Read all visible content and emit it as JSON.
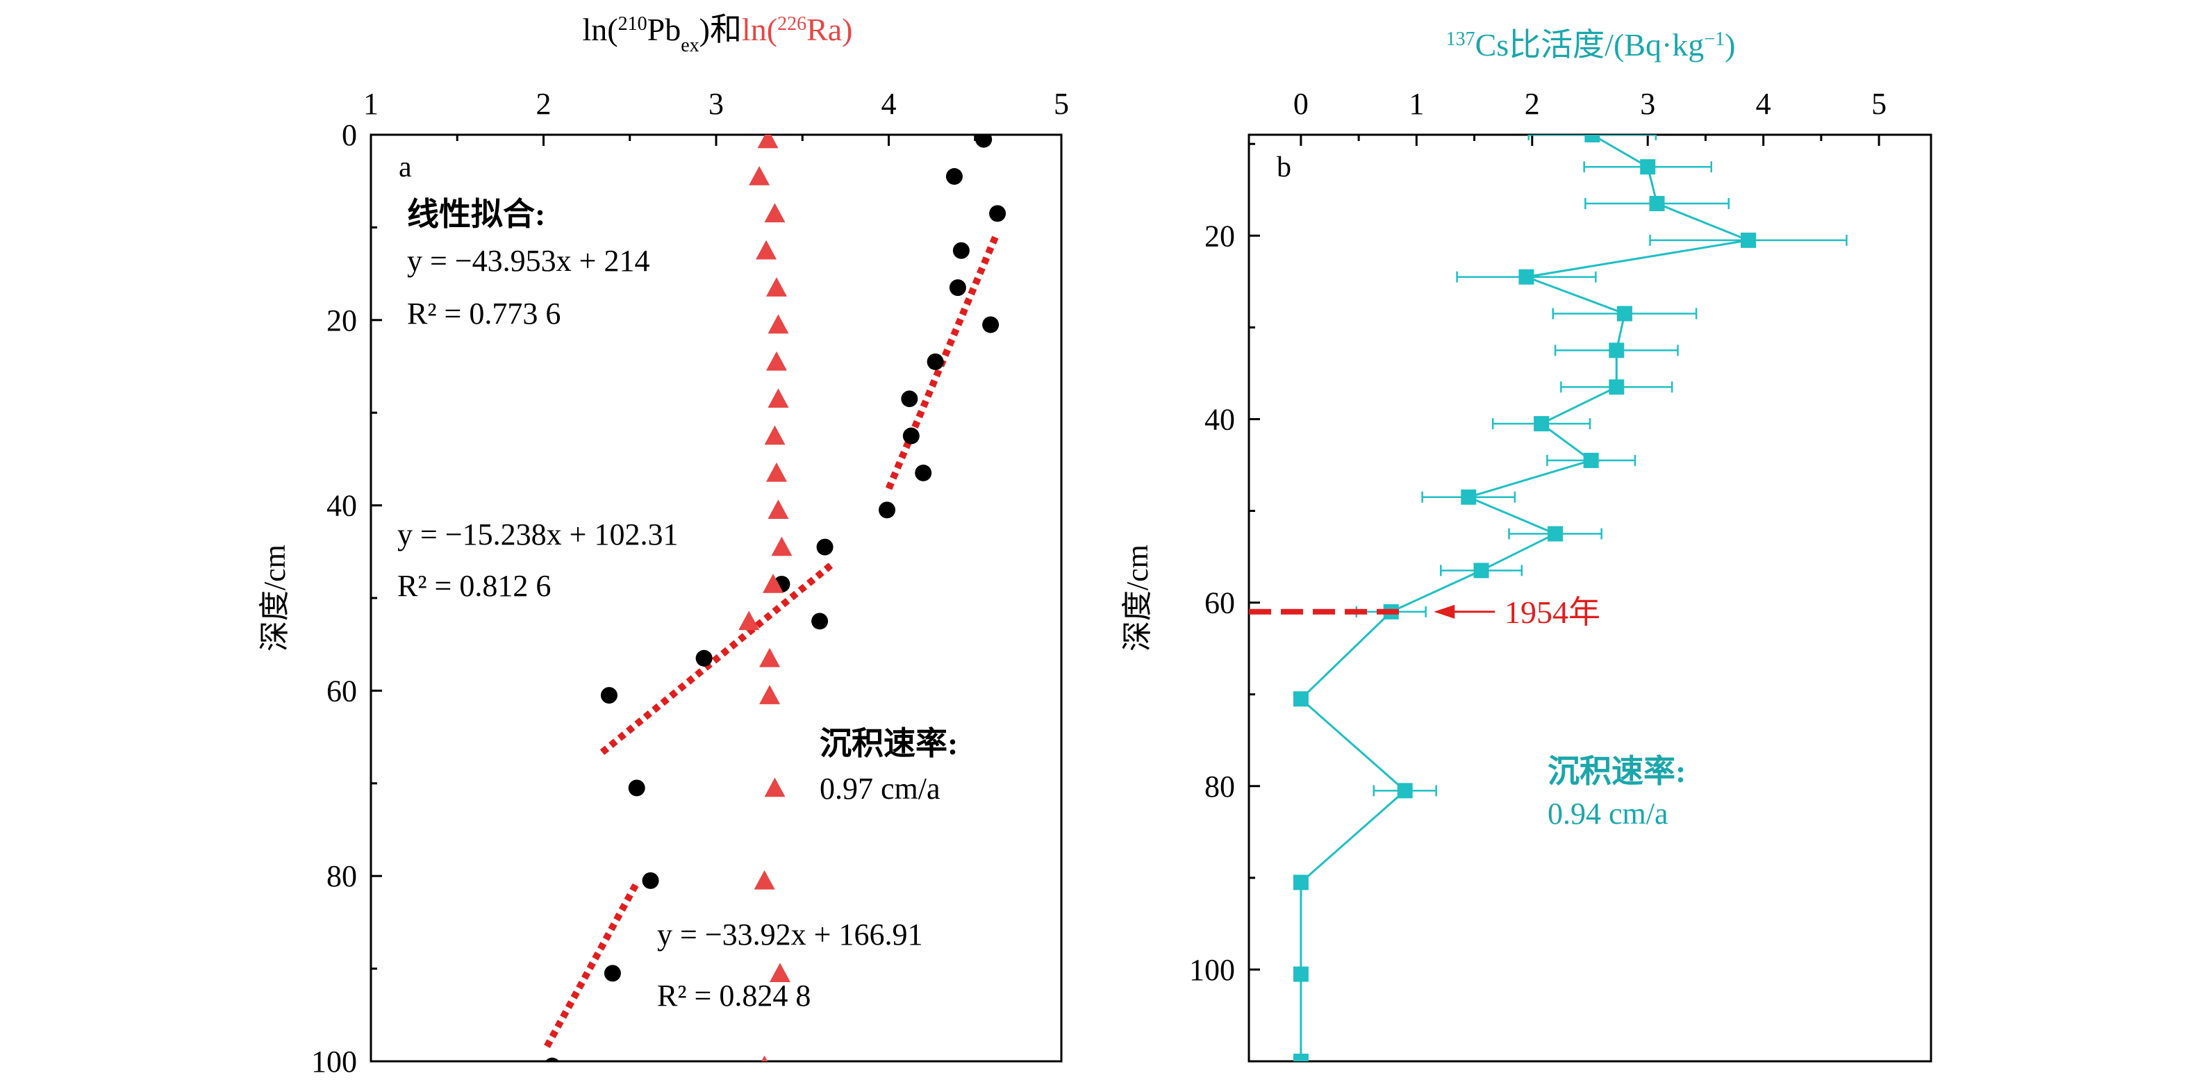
{
  "chart_data": [
    {
      "panel_label": "a",
      "type": "scatter",
      "title_parts": [
        {
          "t": "ln(",
          "c": "black"
        },
        {
          "t": "210",
          "c": "black",
          "sup": true
        },
        {
          "t": "Pb",
          "c": "black"
        },
        {
          "t": "ex",
          "c": "black",
          "sub": true
        },
        {
          "t": ")和",
          "c": "black"
        },
        {
          "t": "ln(",
          "c": "red"
        },
        {
          "t": "226",
          "c": "red",
          "sup": true
        },
        {
          "t": "Ra)",
          "c": "red"
        }
      ],
      "ylabel": "深度/cm",
      "xlim": [
        1,
        5
      ],
      "ylim": [
        0,
        100
      ],
      "x_ticks": [
        1,
        2,
        3,
        4,
        5
      ],
      "y_ticks": [
        0,
        20,
        40,
        60,
        80,
        100
      ],
      "y_inverted": true,
      "x_axis_position": "top",
      "colors": {
        "pb": "#000000",
        "ra": "#e84545",
        "fit": "#e01e1e"
      },
      "series": [
        {
          "marker": "circle",
          "points": [
            [
              4.55,
              0.5
            ],
            [
              4.38,
              4.5
            ],
            [
              4.63,
              8.5
            ],
            [
              4.42,
              12.5
            ],
            [
              4.4,
              16.5
            ],
            [
              4.59,
              20.5
            ],
            [
              4.27,
              24.5
            ],
            [
              4.12,
              28.5
            ],
            [
              4.13,
              32.5
            ],
            [
              4.2,
              36.5
            ],
            [
              3.99,
              40.5
            ],
            [
              3.63,
              44.5
            ],
            [
              3.38,
              48.5
            ],
            [
              3.6,
              52.5
            ],
            [
              2.93,
              56.5
            ],
            [
              2.38,
              60.5
            ],
            [
              2.54,
              70.5
            ],
            [
              2.62,
              80.5
            ],
            [
              2.4,
              90.5
            ],
            [
              2.05,
              100.5
            ]
          ]
        },
        {
          "marker": "triangle",
          "points": [
            [
              3.3,
              0.5
            ],
            [
              3.25,
              4.5
            ],
            [
              3.34,
              8.5
            ],
            [
              3.29,
              12.5
            ],
            [
              3.35,
              16.5
            ],
            [
              3.36,
              20.5
            ],
            [
              3.35,
              24.5
            ],
            [
              3.36,
              28.5
            ],
            [
              3.34,
              32.5
            ],
            [
              3.35,
              36.5
            ],
            [
              3.36,
              40.5
            ],
            [
              3.38,
              44.5
            ],
            [
              3.33,
              48.5
            ],
            [
              3.19,
              52.5
            ],
            [
              3.31,
              56.5
            ],
            [
              3.31,
              60.5
            ],
            [
              3.34,
              70.5
            ],
            [
              3.28,
              80.5
            ],
            [
              3.37,
              90.5
            ],
            [
              3.28,
              100.5
            ]
          ]
        }
      ],
      "fits": [
        {
          "slope": -43.953,
          "intercept": 214,
          "x_range": [
            4.0,
            4.62
          ],
          "equation": "y = −43.953x + 214",
          "r2_label": "R² = 0.773 6"
        },
        {
          "slope": -15.238,
          "intercept": 102.31,
          "x_range": [
            2.34,
            3.67
          ],
          "equation": "y = −15.238x + 102.31",
          "r2_label": "R² = 0.812 6"
        },
        {
          "slope": -33.92,
          "intercept": 166.91,
          "x_range": [
            2.02,
            2.54
          ],
          "equation": "y = −33.92x + 166.91",
          "r2_label": "R² = 0.824 8"
        }
      ],
      "fit_heading": "线性拟合:",
      "rate_label": "沉积速率:",
      "rate_value": "0.97 cm/a"
    },
    {
      "panel_label": "b",
      "type": "line",
      "title_parts": [
        {
          "t": "137",
          "c": "teal",
          "sup": true
        },
        {
          "t": "Cs比活度/(Bq·kg",
          "c": "teal"
        },
        {
          "t": "−1",
          "c": "teal",
          "sup": true
        },
        {
          "t": ")",
          "c": "teal"
        }
      ],
      "ylabel": "深度/cm",
      "xlim": [
        -0.45,
        5.45
      ],
      "ylim": [
        9,
        110
      ],
      "x_ticks": [
        0,
        1,
        2,
        3,
        4,
        5
      ],
      "y_ticks": [
        20,
        40,
        60,
        80,
        100
      ],
      "y_inverted": true,
      "x_axis_position": "top",
      "colors": {
        "cs": "#1fbfc4",
        "marker_1954": "#e01e1e"
      },
      "series": [
        {
          "marker": "square",
          "points": [
            [
              2.52,
              9.0,
              0.55
            ],
            [
              3.0,
              12.5,
              0.55
            ],
            [
              3.08,
              16.5,
              0.62
            ],
            [
              3.87,
              20.5,
              0.85
            ],
            [
              1.95,
              24.5,
              0.6
            ],
            [
              2.8,
              28.5,
              0.62
            ],
            [
              2.73,
              32.5,
              0.53
            ],
            [
              2.73,
              36.5,
              0.48
            ],
            [
              2.08,
              40.5,
              0.42
            ],
            [
              2.51,
              44.5,
              0.38
            ],
            [
              1.45,
              48.5,
              0.4
            ],
            [
              2.2,
              52.5,
              0.4
            ],
            [
              1.56,
              56.5,
              0.35
            ],
            [
              0.78,
              61.0,
              0.3
            ],
            [
              0.0,
              70.5,
              0
            ],
            [
              0.9,
              80.5,
              0.27
            ],
            [
              0.0,
              90.5,
              0
            ],
            [
              0.0,
              100.5,
              0
            ],
            [
              0.0,
              110.0,
              0
            ]
          ]
        }
      ],
      "marker_1954": {
        "depth": 61,
        "label": "1954年"
      },
      "rate_label": "沉积速率:",
      "rate_value": "0.94 cm/a"
    }
  ]
}
